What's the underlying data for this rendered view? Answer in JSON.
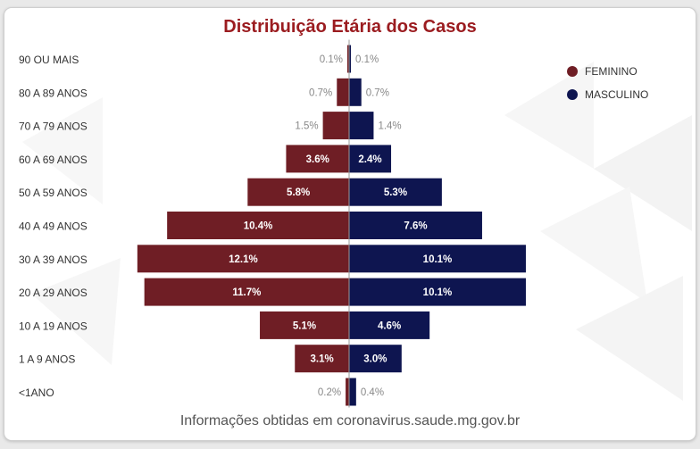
{
  "chart_data": {
    "type": "bar",
    "orientation": "horizontal-population-pyramid",
    "title": "Distribuição Etária dos Casos",
    "categories": [
      "90 OU MAIS",
      "80 A 89 ANOS",
      "70 A 79 ANOS",
      "60 A 69 ANOS",
      "50 A 59 ANOS",
      "40 A 49 ANOS",
      "30 A 39 ANOS",
      "20 A 29 ANOS",
      "10 A 19 ANOS",
      "1 A 9 ANOS",
      "<1ANO"
    ],
    "series": [
      {
        "name": "FEMININO",
        "color": "#6f1e25",
        "side": "left",
        "values": [
          0.1,
          0.7,
          1.5,
          3.6,
          5.8,
          10.4,
          12.1,
          11.7,
          5.1,
          3.1,
          0.2
        ],
        "labels": [
          "0.1%",
          "0.7%",
          "1.5%",
          "3.6%",
          "5.8%",
          "10.4%",
          "12.1%",
          "11.7%",
          "5.1%",
          "3.1%",
          "0.2%"
        ]
      },
      {
        "name": "MASCULINO",
        "color": "#0e1550",
        "side": "right",
        "values": [
          0.1,
          0.7,
          1.4,
          2.4,
          5.3,
          7.6,
          10.1,
          10.1,
          4.6,
          3.0,
          0.4
        ],
        "labels": [
          "0.1%",
          "0.7%",
          "1.4%",
          "2.4%",
          "5.3%",
          "7.6%",
          "10.1%",
          "10.1%",
          "4.6%",
          "3.0%",
          "0.4%"
        ]
      }
    ],
    "legend_position": "top-right",
    "grid": false
  },
  "source_text": "Informações obtidas em coronavirus.saude.mg.gov.br"
}
